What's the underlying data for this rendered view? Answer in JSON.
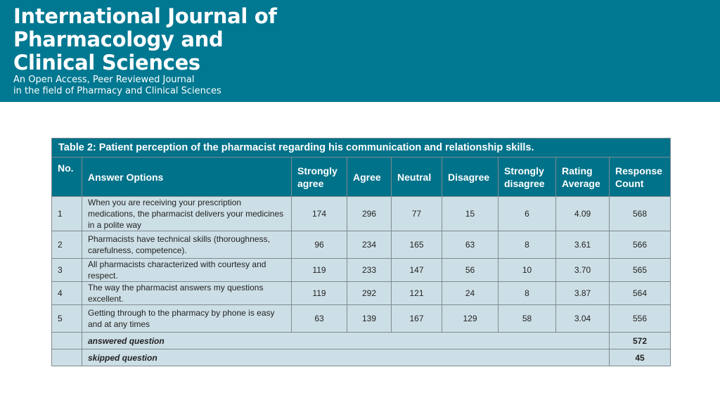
{
  "header": {
    "journal_title": "International Journal of\nPharmacology and\nClinical Sciences",
    "subtitle": "An Open Access, Peer Reviewed Journal\nin the field of Pharmacy and Clinical Sciences"
  },
  "table": {
    "caption": "Table 2: Patient perception of the pharmacist regarding his communication and relationship skills.",
    "columns": [
      "No.",
      "Answer Options",
      "Strongly agree",
      "Agree",
      "Neutral",
      "Disagree",
      "Strongly disagree",
      "Rating Average",
      "Response Count"
    ],
    "rows": [
      {
        "no": "1",
        "option": "When you are receiving your prescription medications, the pharmacist delivers your medicines in a polite way",
        "strongly_agree": "174",
        "agree": "296",
        "neutral": "77",
        "disagree": "15",
        "strongly_disagree": "6",
        "rating_average": "4.09",
        "response_count": "568"
      },
      {
        "no": "2",
        "option": "Pharmacists have technical skills (thoroughness, carefulness, competence).",
        "strongly_agree": "96",
        "agree": "234",
        "neutral": "165",
        "disagree": "63",
        "strongly_disagree": "8",
        "rating_average": "3.61",
        "response_count": "566"
      },
      {
        "no": "3",
        "option": "All pharmacists characterized with courtesy and respect.",
        "strongly_agree": "119",
        "agree": "233",
        "neutral": "147",
        "disagree": "56",
        "strongly_disagree": "10",
        "rating_average": "3.70",
        "response_count": "565"
      },
      {
        "no": "4",
        "option": "The way the pharmacist answers my questions excellent.",
        "strongly_agree": "119",
        "agree": "292",
        "neutral": "121",
        "disagree": "24",
        "strongly_disagree": "8",
        "rating_average": "3.87",
        "response_count": "564"
      },
      {
        "no": "5",
        "option": "Getting through to the pharmacy by phone is easy and at any times",
        "strongly_agree": "63",
        "agree": "139",
        "neutral": "167",
        "disagree": "129",
        "strongly_disagree": "58",
        "rating_average": "3.04",
        "response_count": "556"
      }
    ],
    "footer": [
      {
        "label": "answered question",
        "value": "572"
      },
      {
        "label": "skipped question",
        "value": "45"
      }
    ]
  }
}
